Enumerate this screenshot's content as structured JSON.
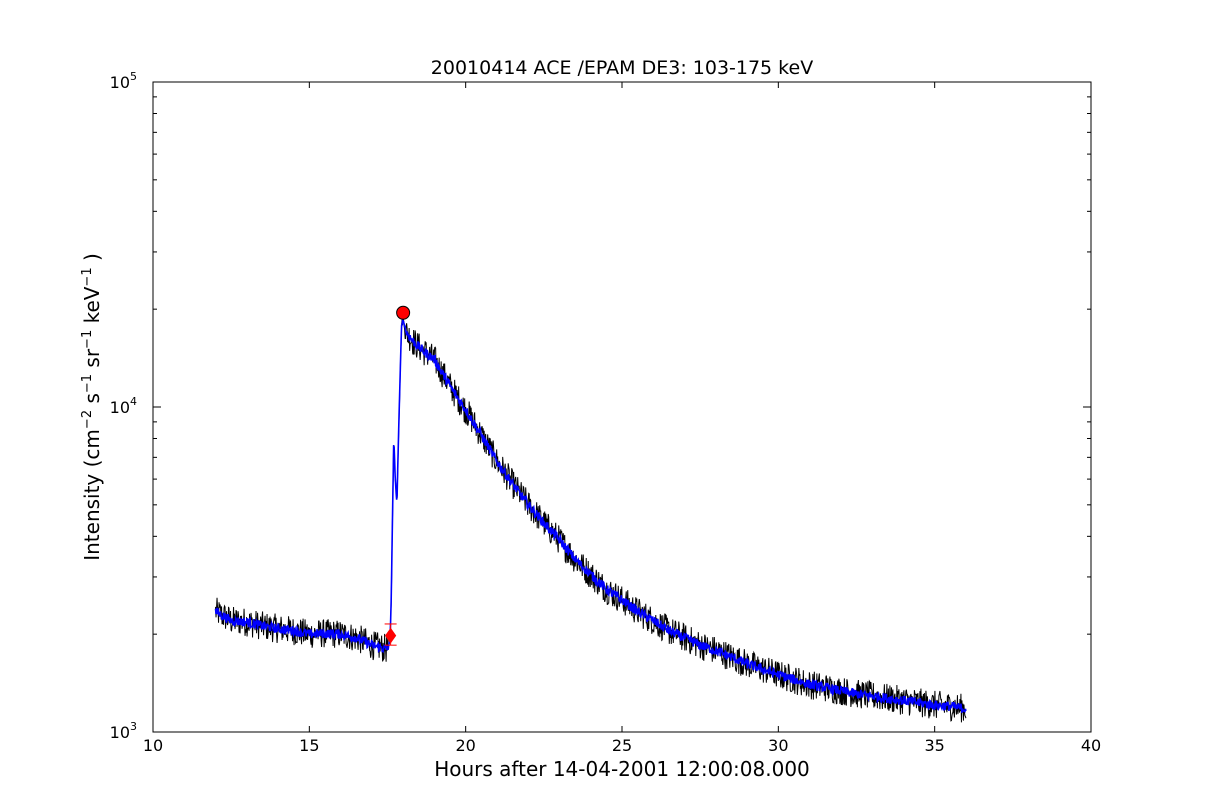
{
  "chart_data": {
    "type": "line",
    "title": "20010414 ACE /EPAM DE3: 103-175 keV",
    "xlabel": "Hours after 14-04-2001 12:00:08.000",
    "ylabel": {
      "prefix": "Intensity (cm",
      "exp1": "−2",
      "s": " s",
      "exp2": "−1",
      "sr": " sr",
      "exp3": "−1",
      "kev": " keV",
      "exp4": "−1",
      "suffix": " )"
    },
    "xlim": [
      10,
      40
    ],
    "ylim": [
      1000,
      100000
    ],
    "yscale": "log",
    "grid": false,
    "x_ticks": [
      {
        "value": 10,
        "label": "10"
      },
      {
        "value": 15,
        "label": "15"
      },
      {
        "value": 20,
        "label": "20"
      },
      {
        "value": 25,
        "label": "25"
      },
      {
        "value": 30,
        "label": "30"
      },
      {
        "value": 35,
        "label": "35"
      },
      {
        "value": 40,
        "label": "40"
      }
    ],
    "y_ticks": [
      {
        "value": 1000,
        "base": "10",
        "exp": "3"
      },
      {
        "value": 10000,
        "base": "10",
        "exp": "4"
      },
      {
        "value": 100000,
        "base": "10",
        "exp": "5"
      }
    ],
    "series": [
      {
        "role": "raw",
        "color": "#000000",
        "noise": 0.045,
        "x": [
          12.0,
          12.5,
          13.0,
          13.5,
          14.0,
          14.5,
          15.0,
          15.5,
          16.0,
          16.5,
          17.0,
          17.5,
          17.58,
          17.62,
          17.7,
          17.75,
          17.8,
          17.85,
          17.9,
          17.95,
          18.0,
          18.1,
          18.3,
          18.6,
          19.0,
          19.3,
          19.6,
          20.0,
          20.5,
          21.0,
          21.5,
          22.0,
          22.5,
          23.0,
          23.5,
          24.0,
          24.5,
          25.0,
          25.5,
          26.0,
          26.5,
          27.0,
          27.5,
          28.0,
          28.5,
          29.0,
          29.5,
          30.0,
          30.5,
          31.0,
          31.5,
          32.0,
          32.5,
          33.0,
          33.5,
          34.0,
          34.5,
          35.0,
          35.5,
          36.0
        ],
        "y": [
          2350,
          2200,
          2180,
          2120,
          2080,
          2050,
          2000,
          2010,
          2000,
          1950,
          1850,
          1800,
          1900,
          2600,
          8000,
          6000,
          5000,
          8000,
          12000,
          18000,
          18500,
          17000,
          16000,
          15000,
          14000,
          12500,
          11200,
          9800,
          8200,
          6800,
          5800,
          5000,
          4400,
          3900,
          3400,
          3050,
          2750,
          2550,
          2350,
          2200,
          2050,
          1950,
          1850,
          1780,
          1700,
          1620,
          1560,
          1500,
          1450,
          1400,
          1370,
          1340,
          1310,
          1290,
          1270,
          1250,
          1230,
          1210,
          1200,
          1180
        ]
      },
      {
        "role": "smoothed",
        "color": "#0000ff",
        "noise": 0.015,
        "x": [
          12.0,
          12.5,
          13.0,
          13.5,
          14.0,
          14.5,
          15.0,
          15.5,
          16.0,
          16.5,
          17.0,
          17.5,
          17.58,
          17.62,
          17.7,
          17.75,
          17.8,
          17.85,
          17.9,
          17.95,
          18.0,
          18.1,
          18.3,
          18.6,
          19.0,
          19.3,
          19.6,
          20.0,
          20.5,
          21.0,
          21.5,
          22.0,
          22.5,
          23.0,
          23.5,
          24.0,
          24.5,
          25.0,
          25.5,
          26.0,
          26.5,
          27.0,
          27.5,
          28.0,
          28.5,
          29.0,
          29.5,
          30.0,
          30.5,
          31.0,
          31.5,
          32.0,
          32.5,
          33.0,
          33.5,
          34.0,
          34.5,
          35.0,
          35.5,
          36.0
        ],
        "y": [
          2350,
          2200,
          2180,
          2120,
          2080,
          2050,
          2000,
          2010,
          2000,
          1950,
          1850,
          1800,
          1900,
          2600,
          8000,
          6000,
          5000,
          8000,
          12000,
          18000,
          18500,
          17000,
          16000,
          15000,
          14000,
          12500,
          11200,
          9800,
          8200,
          6800,
          5800,
          5000,
          4400,
          3900,
          3400,
          3050,
          2750,
          2550,
          2350,
          2200,
          2050,
          1950,
          1850,
          1780,
          1700,
          1620,
          1560,
          1500,
          1450,
          1400,
          1370,
          1340,
          1310,
          1290,
          1270,
          1250,
          1230,
          1210,
          1200,
          1180
        ]
      }
    ],
    "markers": [
      {
        "name": "onset",
        "shape": "diamond",
        "color": "#ff0000",
        "x": 17.6,
        "y": 1980
      },
      {
        "name": "peak",
        "shape": "circle",
        "color": "#ff0000",
        "x": 18.0,
        "y": 19500
      }
    ],
    "error_bar": {
      "x": 17.6,
      "y_low": 1850,
      "y_high": 2150,
      "color": "#ff0000"
    }
  }
}
